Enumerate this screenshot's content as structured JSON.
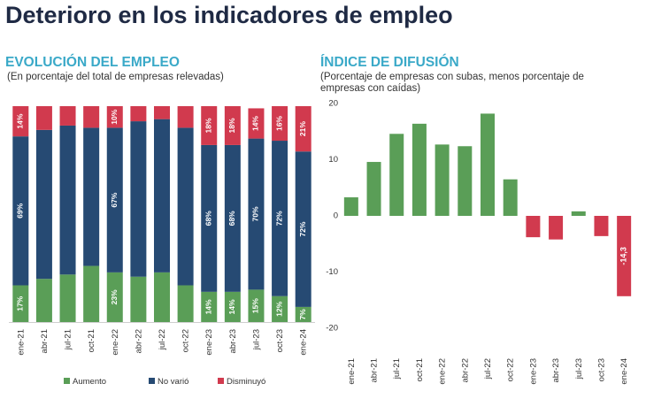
{
  "page": {
    "title": "Deterioro en los indicadores de empleo"
  },
  "colors": {
    "title": "#1f2a44",
    "panel_title": "#3aa9c8",
    "aumento": "#5a9e57",
    "no_vario": "#264a73",
    "disminuyo": "#d13a4e"
  },
  "chart_data": [
    {
      "type": "bar",
      "stacked": true,
      "percent_stacked": true,
      "title": "EVOLUCIÓN DEL EMPLEO",
      "subtitle": "(En porcentaje del total de empresas relevadas)",
      "categories": [
        "ene-21",
        "abr-21",
        "jul-21",
        "oct-21",
        "ene-22",
        "abr-22",
        "jul-22",
        "oct-22",
        "ene-23",
        "abr-23",
        "jul-23",
        "oct-23",
        "ene-24"
      ],
      "series": [
        {
          "name": "Aumento",
          "values": [
            17,
            20,
            22,
            26,
            23,
            21,
            23,
            17,
            14,
            14,
            15,
            12,
            7
          ],
          "labels": [
            "17%",
            "",
            "",
            "",
            "23%",
            "",
            "",
            "",
            "14%",
            "14%",
            "15%",
            "12%",
            "7%"
          ]
        },
        {
          "name": "No varió",
          "values": [
            69,
            69,
            69,
            64,
            67,
            72,
            71,
            73,
            68,
            68,
            70,
            72,
            72
          ],
          "labels": [
            "69%",
            "",
            "",
            "",
            "67%",
            "",
            "",
            "",
            "68%",
            "68%",
            "70%",
            "72%",
            "72%"
          ]
        },
        {
          "name": "Disminuyó",
          "values": [
            14,
            11,
            9,
            10,
            10,
            7,
            6,
            10,
            18,
            18,
            14,
            16,
            21
          ],
          "labels": [
            "14%",
            "",
            "",
            "",
            "10%",
            "",
            "",
            "",
            "18%",
            "18%",
            "14%",
            "16%",
            "21%"
          ]
        }
      ],
      "ylim": [
        0,
        100
      ],
      "legend_position": "bottom"
    },
    {
      "type": "bar",
      "title": "ÍNDICE DE DIFUSIÓN",
      "subtitle": "(Porcentaje de empresas con subas, menos porcentaje de empresas con caídas)",
      "categories": [
        "ene-21",
        "abr-21",
        "jul-21",
        "oct-21",
        "ene-22",
        "abr-22",
        "jul-22",
        "oct-22",
        "ene-23",
        "abr-23",
        "jul-23",
        "oct-23",
        "ene-24"
      ],
      "values": [
        3.3,
        9.6,
        14.6,
        16.4,
        12.7,
        12.4,
        18.2,
        6.5,
        -3.8,
        -4.2,
        0.8,
        -3.6,
        -14.3
      ],
      "value_labels": [
        "",
        "",
        "",
        "",
        "",
        "",
        "",
        "",
        "",
        "",
        "",
        "",
        "-14,3"
      ],
      "yticks": [
        20,
        10,
        0,
        -10,
        -20
      ],
      "ylim": [
        -22,
        20
      ],
      "grid": false,
      "positive_color": "#5a9e57",
      "negative_color": "#d13a4e"
    }
  ]
}
